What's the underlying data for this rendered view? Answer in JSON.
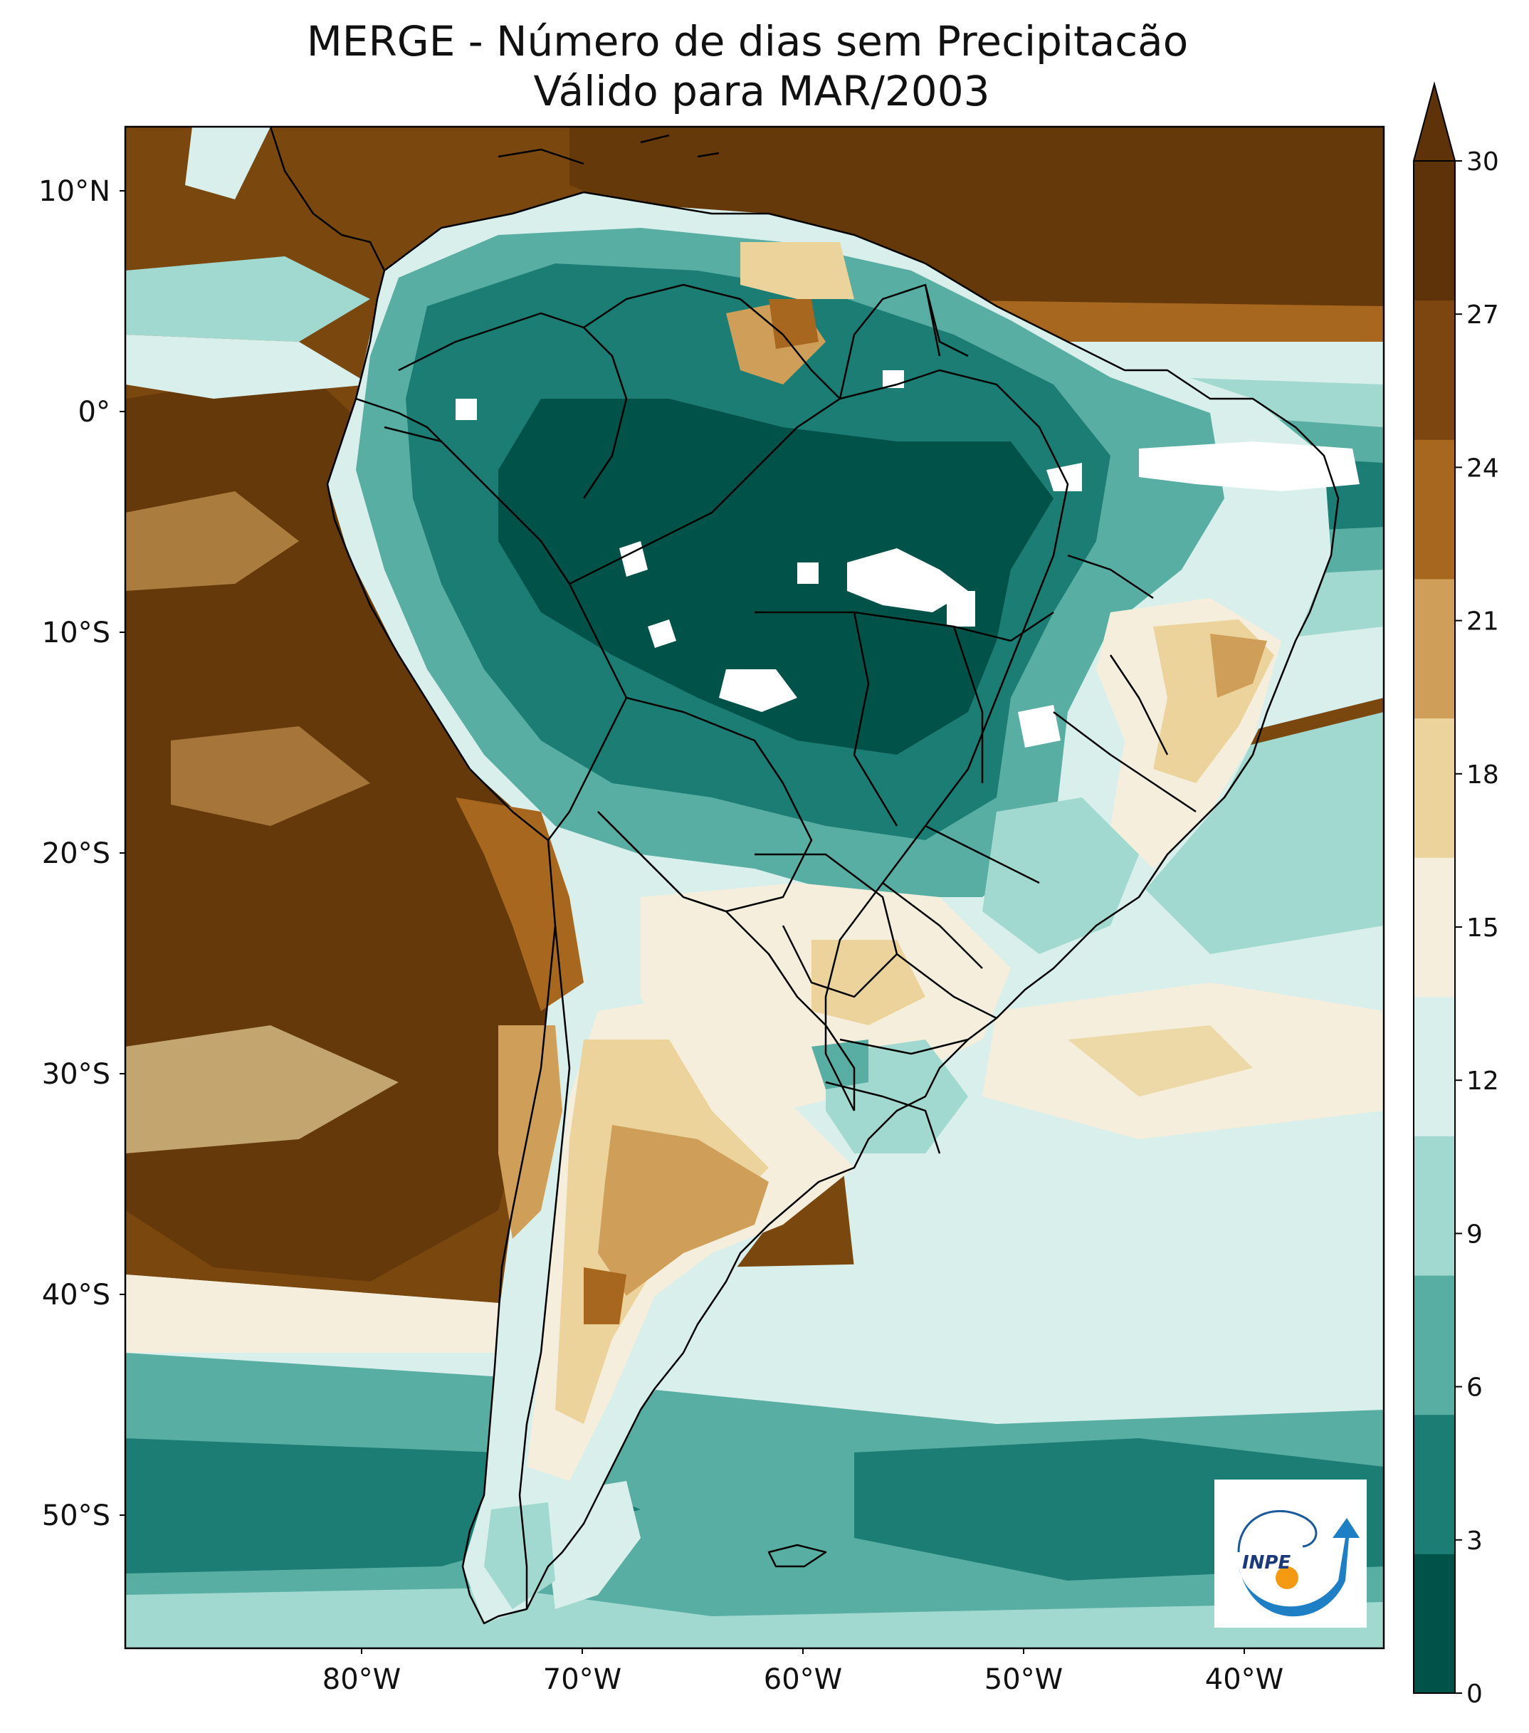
{
  "title": {
    "line1": "MERGE - Número de dias sem Precipitacão",
    "line2": "Válido para MAR/2003"
  },
  "axes": {
    "lat_labels": [
      "10°N",
      "0°",
      "10°S",
      "20°S",
      "30°S",
      "40°S",
      "50°S"
    ],
    "lon_labels": [
      "80°W",
      "70°W",
      "60°W",
      "50°W",
      "40°W"
    ]
  },
  "colorbar": {
    "ticks": [
      "0",
      "3",
      "6",
      "9",
      "12",
      "15",
      "18",
      "21",
      "24",
      "27",
      "30"
    ],
    "colors": [
      "#01534a",
      "#1b7d74",
      "#59aea3",
      "#a1d8cf",
      "#d9efec",
      "#f6eedc",
      "#ebd39b",
      "#cf9f59",
      "#a8671f",
      "#7d4610",
      "#5f330a"
    ],
    "extend": "max"
  },
  "palette": {
    "ocean_dry": "#7a480f",
    "ocean_dry_dark": "#66390a",
    "very_wet": "#01534a",
    "wet": "#1b7d74",
    "mid_wet": "#59aea3",
    "light": "#a1d8cf",
    "pale": "#d9efec",
    "cream": "#f6eedc",
    "tan": "#ebd39b",
    "brown": "#cf9f59",
    "dark_brown": "#a8671f"
  },
  "logo": {
    "text": "INPE"
  }
}
